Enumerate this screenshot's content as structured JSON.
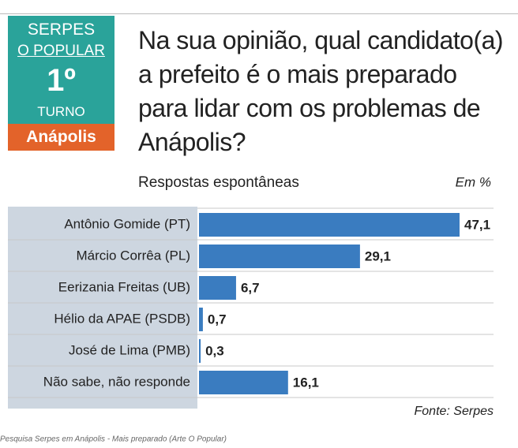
{
  "header": {
    "badge": {
      "line1": "SERPES",
      "line2": "O POPULAR",
      "round": "1º",
      "round_label": "TURNO",
      "city": "Anápolis"
    }
  },
  "chart_data": {
    "type": "bar",
    "orientation": "horizontal",
    "title": "Na sua opinião, qual candidato(a) a prefeito é o mais preparado para lidar com os problemas de Anápolis?",
    "subtitle": "Respostas espontâneas",
    "unit": "Em %",
    "categories": [
      "Antônio Gomide (PT)",
      "Márcio Corrêa (PL)",
      "Eerizania Freitas (UB)",
      "Hélio da APAE (PSDB)",
      "José de Lima (PMB)",
      "Não sabe, não responde"
    ],
    "values": [
      47.1,
      29.1,
      6.7,
      0.7,
      0.3,
      16.1
    ],
    "value_labels": [
      "47,1",
      "29,1",
      "6,7",
      "0,7",
      "0,3",
      "16,1"
    ],
    "color": "#3a7cc0",
    "source": "Fonte: Serpes"
  },
  "caption": "Pesquisa Serpes em Anápolis - Mais preparado (Arte O Popular)"
}
